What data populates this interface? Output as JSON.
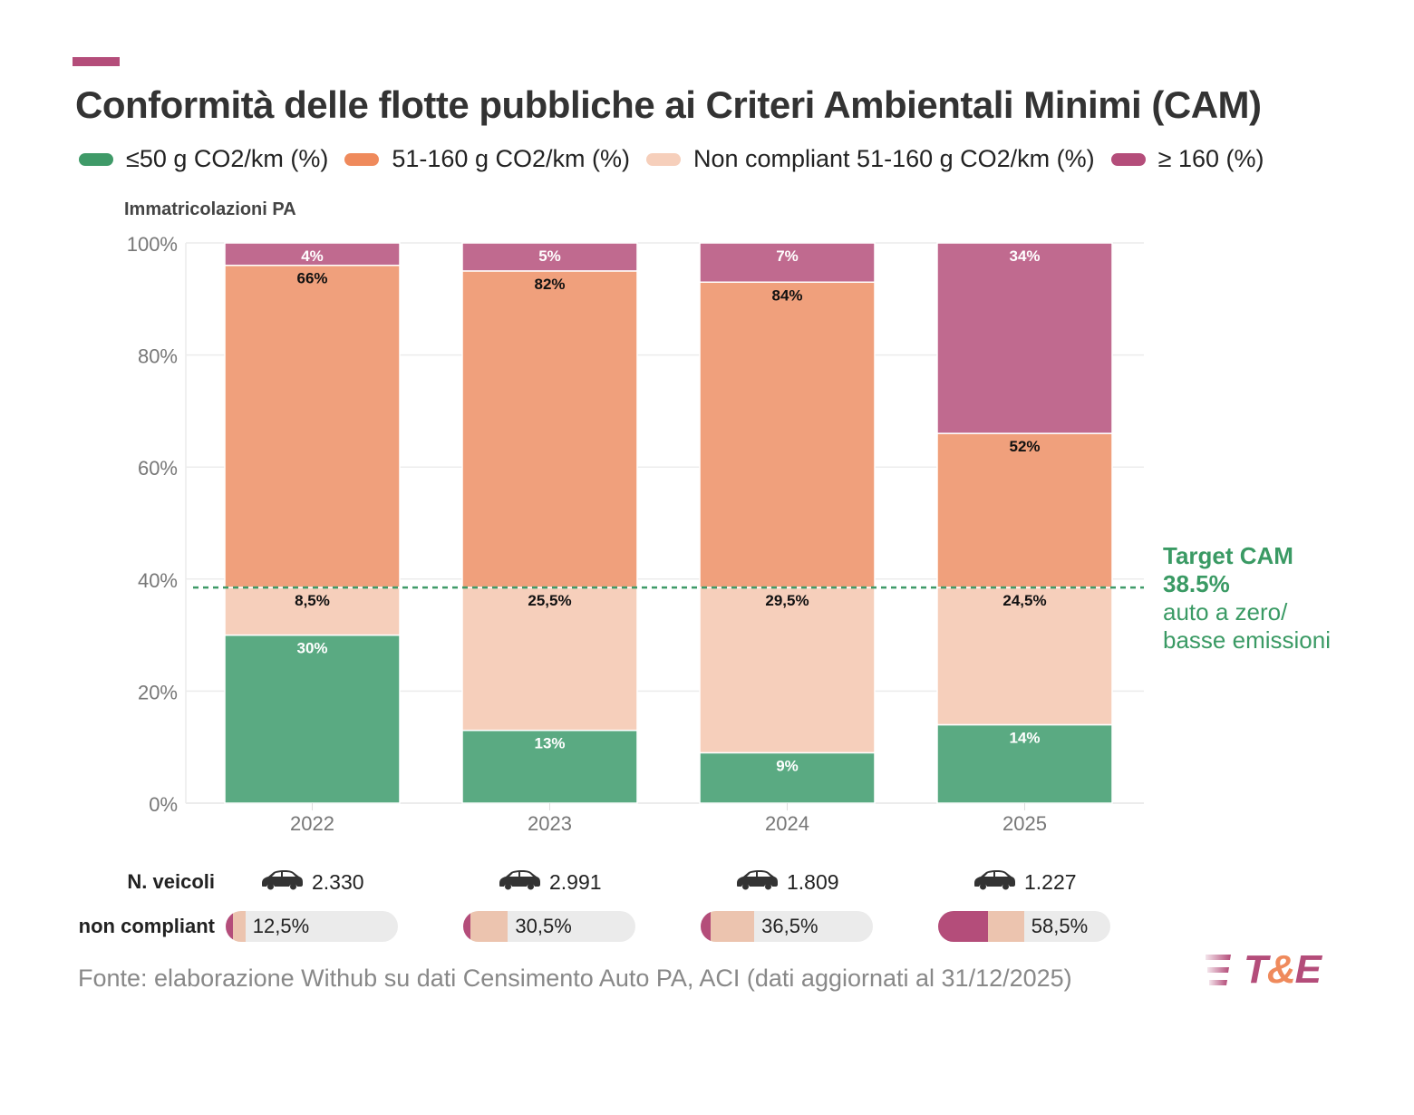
{
  "header": {
    "title": "Conformità delle flotte pubbliche ai Criteri Ambientali Minimi (CAM)",
    "accent_color": "#b44d7a"
  },
  "legend": [
    {
      "label": "≤50 g CO2/km (%)",
      "color": "#3f9a68"
    },
    {
      "label": "51-160 g CO2/km (%)",
      "color": "#ef8a5c"
    },
    {
      "label": "Non compliant 51-160 g CO2/km (%)",
      "color": "#f6cfbb"
    },
    {
      "label": "≥ 160 (%)",
      "color": "#b44d7a"
    }
  ],
  "chart_data": {
    "type": "bar",
    "stacked": true,
    "title": "Conformità delle flotte pubbliche ai Criteri Ambientali Minimi (CAM)",
    "subtitle": "Immatricolazioni PA",
    "xlabel": "",
    "ylabel": "Immatricolazioni PA",
    "ylim": [
      0,
      100
    ],
    "yticks": [
      "0%",
      "20%",
      "40%",
      "60%",
      "80%",
      "100%"
    ],
    "ytick_values": [
      0,
      20,
      40,
      60,
      80,
      100
    ],
    "grid": true,
    "legend_position": "top",
    "categories": [
      "2022",
      "2023",
      "2024",
      "2025"
    ],
    "series": [
      {
        "name": "≤50 g CO2/km (%)",
        "color": "#5aaa82",
        "label_color": "#ffffff",
        "values": [
          30,
          13,
          9,
          14
        ],
        "labels": [
          "30%",
          "13%",
          "9%",
          "14%"
        ]
      },
      {
        "name": "Non compliant 51-160 g CO2/km (%)",
        "color": "#f6cfbb",
        "label_color": "#111111",
        "values": [
          8.5,
          25.5,
          29.5,
          24.5
        ],
        "labels": [
          "8,5%",
          "25,5%",
          "29,5%",
          "24,5%"
        ]
      },
      {
        "name": "51-160 g CO2/km (%)",
        "color": "#f0a07c",
        "label_color": "#111111",
        "values": [
          57.5,
          56.5,
          54.5,
          27.5
        ],
        "labels": [
          "66%",
          "82%",
          "84%",
          "52%"
        ]
      },
      {
        "name": "≥ 160 (%)",
        "color": "#c06a8f",
        "label_color": "#ffffff",
        "values": [
          4,
          5,
          7,
          34
        ],
        "labels": [
          "4%",
          "5%",
          "7%",
          "34%"
        ]
      }
    ],
    "reference_line": {
      "value": 38.5,
      "color": "#3f9a68",
      "style": "dotted",
      "label_bold": [
        "Target CAM",
        "38.5%"
      ],
      "label_regular": [
        "auto a zero/",
        "basse emissioni"
      ]
    }
  },
  "vehicles": {
    "label": "N. veicoli",
    "icon": "car-icon",
    "values": [
      "2.330",
      "2.991",
      "1.809",
      "1.227"
    ]
  },
  "non_compliant": {
    "label": "non compliant",
    "values": [
      "12,5%",
      "30,5%",
      "36,5%",
      "58,5%"
    ],
    "over160_pct": [
      4,
      5,
      7,
      34
    ],
    "non_compliant_51_160_pct": [
      8.5,
      25.5,
      29.5,
      24.5
    ],
    "colors": {
      "over160": "#b44d7a",
      "nc": "#ecc4af",
      "track": "#ebebeb"
    }
  },
  "footer": {
    "source": "Fonte: elaborazione Withub su dati Censimento Auto PA, ACI (dati aggiornati al 31/12/2025)",
    "logo_text_1": "T",
    "logo_text_amp": "&",
    "logo_text_2": "E"
  }
}
